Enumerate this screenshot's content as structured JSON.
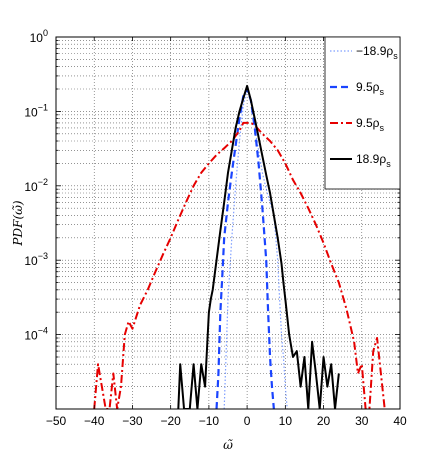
{
  "chart_data": {
    "type": "line",
    "xlabel": "ω̃",
    "ylabel": "PDF(ω̃)",
    "xlim": [
      -50,
      40
    ],
    "ylim": [
      1e-05,
      1
    ],
    "yscale": "log",
    "grid": true,
    "legend_position": "top-right",
    "x_ticks": [
      -50,
      -40,
      -30,
      -20,
      -10,
      0,
      10,
      20,
      30,
      40
    ],
    "x_tick_labels": [
      "−50",
      "−40",
      "−30",
      "−20",
      "−10",
      "0",
      "10",
      "20",
      "30",
      "40"
    ],
    "y_ticks": [
      1,
      0.1,
      0.01,
      0.001,
      0.0001
    ],
    "y_tick_labels": [
      {
        "base": "10",
        "exp": "0"
      },
      {
        "base": "10",
        "exp": "−1"
      },
      {
        "base": "10",
        "exp": "−2"
      },
      {
        "base": "10",
        "exp": "−3"
      },
      {
        "base": "10",
        "exp": "−4"
      }
    ],
    "series": [
      {
        "name": "−18.9ρ",
        "name_sub": "s",
        "color": "#7f9fff",
        "style": "dotted",
        "x": [
          -6,
          -5,
          -4,
          -3,
          -2,
          -1,
          0,
          1,
          2,
          3,
          4,
          5,
          6,
          7,
          8,
          8.5,
          9,
          9.5,
          10,
          10.5
        ],
        "y": [
          1e-05,
          0.0003,
          0.002,
          0.01,
          0.04,
          0.12,
          0.2,
          0.14,
          0.06,
          0.03,
          0.015,
          0.009,
          0.006,
          0.004,
          0.001,
          0.0003,
          0.0001,
          5e-05,
          2e-05,
          1e-05
        ]
      },
      {
        "name": "9.5ρ",
        "name_sub": "s",
        "color": "#1a44ff",
        "style": "dashed",
        "x": [
          -8,
          -7.5,
          -7,
          -6.5,
          -6,
          -5,
          -4,
          -3,
          -2,
          -1,
          0,
          1,
          2,
          3,
          4,
          5,
          5.5,
          6,
          6.5,
          7
        ],
        "y": [
          1e-05,
          3e-05,
          0.0002,
          0.0006,
          0.002,
          0.006,
          0.015,
          0.035,
          0.08,
          0.16,
          0.2,
          0.14,
          0.06,
          0.02,
          0.005,
          0.001,
          0.0002,
          5e-05,
          2e-05,
          1e-05
        ]
      },
      {
        "name": "9.5ρ",
        "name_sub": "s",
        "color": "#e60000",
        "style": "dashdot",
        "x": [
          -40,
          -39,
          -38,
          -37,
          -36,
          -35,
          -34,
          -33,
          -32,
          -31,
          -30,
          -28,
          -26,
          -24,
          -22,
          -20,
          -18,
          -16,
          -14,
          -12,
          -10,
          -8,
          -6,
          -4,
          -2,
          -1,
          0,
          1,
          2,
          4,
          6,
          8,
          10,
          12,
          14,
          16,
          18,
          20,
          22,
          24,
          26,
          28,
          29,
          30,
          31,
          32,
          33,
          34,
          35,
          36
        ],
        "y": [
          1e-05,
          4e-05,
          2e-05,
          1e-05,
          1e-05,
          3e-05,
          1e-05,
          2e-05,
          0.0001,
          0.00015,
          0.00012,
          0.00025,
          0.0004,
          0.0007,
          0.0012,
          0.002,
          0.0035,
          0.006,
          0.01,
          0.015,
          0.02,
          0.026,
          0.032,
          0.04,
          0.055,
          0.07,
          0.07,
          0.07,
          0.065,
          0.05,
          0.04,
          0.03,
          0.02,
          0.012,
          0.008,
          0.005,
          0.003,
          0.0017,
          0.0009,
          0.0005,
          0.00022,
          8e-05,
          3e-05,
          4e-05,
          1e-05,
          1e-05,
          6e-05,
          9e-05,
          3e-05,
          1e-05
        ]
      },
      {
        "name": "18.9ρ",
        "name_sub": "s",
        "color": "#000000",
        "style": "solid",
        "x": [
          -18,
          -17.5,
          -17,
          -16.5,
          -16,
          -15,
          -14,
          -13,
          -12,
          -11,
          -10,
          -9.5,
          -9,
          -8,
          -7,
          -6,
          -5,
          -4,
          -3,
          -2,
          -1,
          0,
          1,
          2,
          3,
          4,
          5,
          6,
          7,
          8,
          9,
          9.5,
          10,
          11,
          12,
          13,
          14,
          15,
          16,
          17,
          18,
          19,
          20,
          21,
          22,
          23,
          24
        ],
        "y": [
          1e-05,
          4e-05,
          2e-05,
          1e-05,
          1e-05,
          1e-05,
          4e-05,
          1e-05,
          4e-05,
          2e-05,
          0.0002,
          0.0003,
          0.0004,
          0.001,
          0.0025,
          0.006,
          0.015,
          0.03,
          0.06,
          0.1,
          0.15,
          0.22,
          0.14,
          0.08,
          0.045,
          0.025,
          0.014,
          0.008,
          0.004,
          0.002,
          0.0009,
          0.0005,
          0.0003,
          0.0001,
          5e-05,
          6e-05,
          2e-05,
          5e-05,
          1e-05,
          8e-05,
          3e-05,
          1e-05,
          5e-05,
          2e-05,
          4e-05,
          1e-05,
          3e-05
        ]
      }
    ]
  }
}
